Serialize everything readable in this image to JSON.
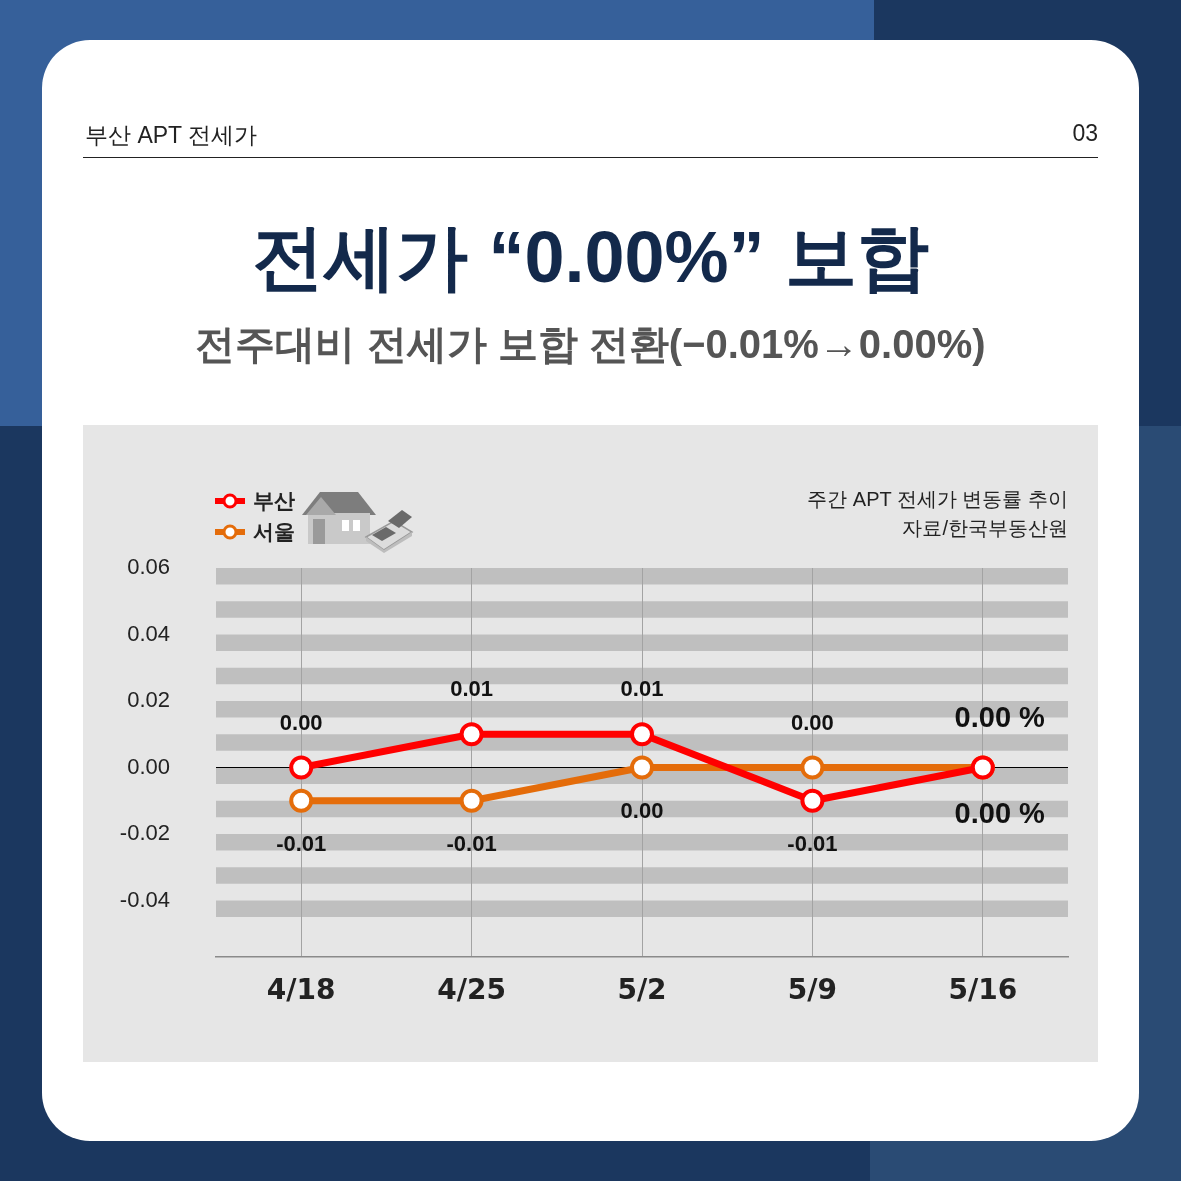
{
  "chart_data": {
    "type": "line",
    "title": "전세가 “0.00%” 보합",
    "subtitle": "전주대비 전세가 보합 전환(−0.01%→0.00%)",
    "annotations": [
      "부산 APT 전세가",
      "03",
      "주간 APT 전세가 변동률 추이",
      "자료/한국부동산원"
    ],
    "categories": [
      "4/18",
      "4/25",
      "5/2",
      "5/9",
      "5/16"
    ],
    "series": [
      {
        "name": "부산",
        "color": "#ff0000",
        "values": [
          0,
          0.01,
          0.01,
          -0.01,
          0
        ],
        "value_labels": [
          "0.00",
          "0.01",
          "0.01",
          "-0.01",
          "0.00 %"
        ]
      },
      {
        "name": "서울",
        "color": "#e46c0a",
        "values": [
          -0.01,
          -0.01,
          0,
          0,
          0
        ],
        "value_labels": [
          "-0.01",
          "-0.01",
          "0.00",
          "0.00",
          "0.00 %"
        ]
      }
    ],
    "ylim": [
      -0.057,
      0.06
    ],
    "yticks": [
      0.06,
      0.04,
      0.02,
      {
        "value": 0,
        "label": "0.00"
      },
      -0.02,
      -0.04
    ],
    "grid": "x",
    "legend": "top left",
    "marker": "circle",
    "line_style": "solid",
    "ref_lines": [
      {
        "axis": "y",
        "value": 0,
        "color": "#000000"
      }
    ],
    "bands": [
      {
        "axis": "y",
        "from": 0.055,
        "to": 0.06,
        "color": "#bfbfbf"
      },
      {
        "axis": "y",
        "from": 0.045,
        "to": 0.05,
        "color": "#bfbfbf"
      },
      {
        "axis": "y",
        "from": 0.035,
        "to": 0.04,
        "color": "#bfbfbf"
      },
      {
        "axis": "y",
        "from": 0.025,
        "to": 0.03,
        "color": "#bfbfbf"
      },
      {
        "axis": "y",
        "from": 0.015,
        "to": 0.02,
        "color": "#bfbfbf"
      },
      {
        "axis": "y",
        "from": 0.005,
        "to": 0.01,
        "color": "#bfbfbf"
      },
      {
        "axis": "y",
        "from": -0.005,
        "to": 0,
        "color": "#bfbfbf"
      },
      {
        "axis": "y",
        "from": -0.015,
        "to": -0.01,
        "color": "#bfbfbf"
      },
      {
        "axis": "y",
        "from": -0.025,
        "to": -0.02,
        "color": "#bfbfbf"
      },
      {
        "axis": "y",
        "from": -0.035,
        "to": -0.03,
        "color": "#bfbfbf"
      },
      {
        "axis": "y",
        "from": -0.045,
        "to": -0.04,
        "color": "#bfbfbf"
      }
    ]
  }
}
